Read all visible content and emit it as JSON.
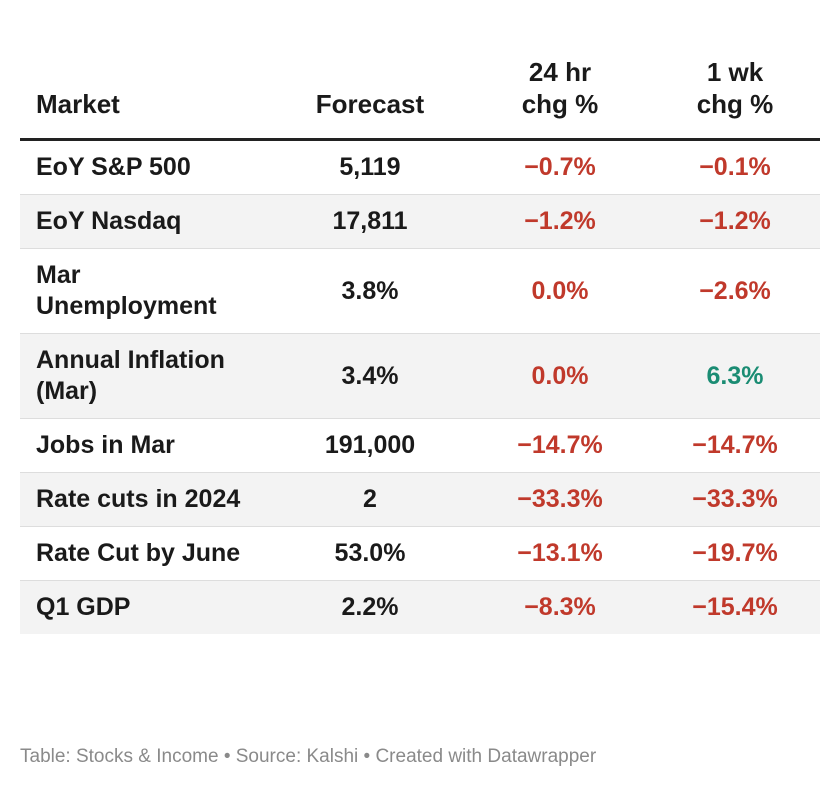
{
  "chart_data": {
    "type": "table",
    "columns": [
      "Market",
      "Forecast",
      "24 hr chg %",
      "1 wk chg %"
    ],
    "rows": [
      {
        "market": "EoY S&P 500",
        "forecast": "5,119",
        "chg_24h": "−0.7%",
        "chg_1wk": "−0.1%"
      },
      {
        "market": "EoY Nasdaq",
        "forecast": "17,811",
        "chg_24h": "−1.2%",
        "chg_1wk": "−1.2%"
      },
      {
        "market": "Mar Unemployment",
        "forecast": "3.8%",
        "chg_24h": "0.0%",
        "chg_1wk": "−2.6%"
      },
      {
        "market": "Annual Inflation (Mar)",
        "forecast": "3.4%",
        "chg_24h": "0.0%",
        "chg_1wk": "6.3%"
      },
      {
        "market": "Jobs in Mar",
        "forecast": "191,000",
        "chg_24h": "−14.7%",
        "chg_1wk": "−14.7%"
      },
      {
        "market": "Rate cuts in 2024",
        "forecast": "2",
        "chg_24h": "−33.3%",
        "chg_1wk": "−33.3%"
      },
      {
        "market": "Rate Cut by June",
        "forecast": "53.0%",
        "chg_24h": "−13.1%",
        "chg_1wk": "−19.7%"
      },
      {
        "market": "Q1 GDP",
        "forecast": "2.2%",
        "chg_24h": "−8.3%",
        "chg_1wk": "−15.4%"
      }
    ]
  },
  "colors": {
    "negative": "#c0392b",
    "positive": "#1a8c73",
    "stripe": "#f3f3f3"
  },
  "footer": "Table: Stocks & Income • Source: Kalshi • Created with Datawrapper"
}
